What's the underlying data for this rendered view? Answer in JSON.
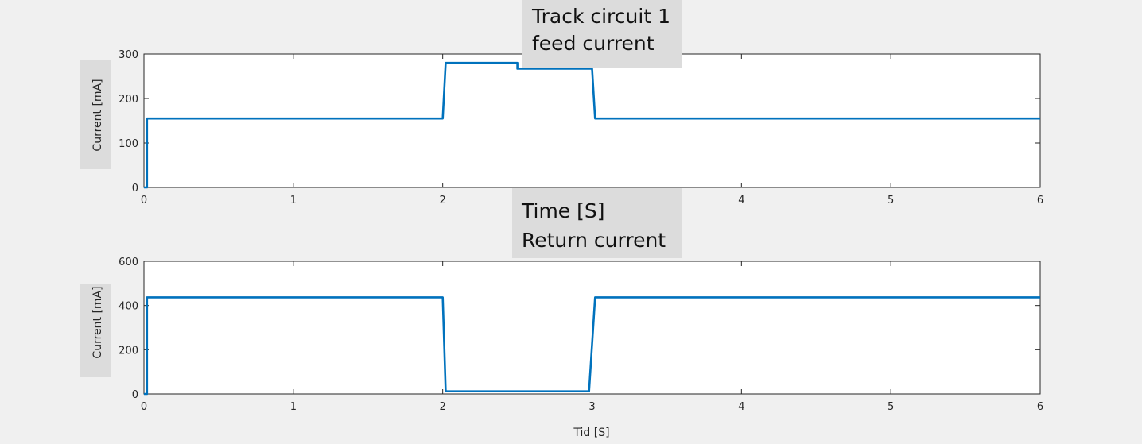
{
  "chart_data": [
    {
      "type": "line",
      "title_lines": [
        "Track circuit 1",
        "feed current"
      ],
      "xlabel": "",
      "ylabel": "Current [mA]",
      "xlim": [
        0,
        6
      ],
      "ylim": [
        0,
        300
      ],
      "xticks": [
        "0",
        "1",
        "2",
        "3",
        "4",
        "5",
        "6"
      ],
      "yticks": [
        "0",
        "100",
        "200",
        "300"
      ],
      "color": "#0072BD",
      "series": [
        {
          "x": [
            0,
            0.02,
            0.02,
            2.0,
            2.02,
            2.5,
            2.5,
            3.0,
            3.02,
            6.0
          ],
          "y": [
            0,
            0,
            155,
            155,
            280,
            280,
            267,
            267,
            155,
            155
          ]
        }
      ]
    },
    {
      "type": "line",
      "title_lines": [
        "Time [S]",
        "Return current"
      ],
      "xlabel": "Tid [S]",
      "ylabel": "Current [mA]",
      "xlim": [
        0,
        6
      ],
      "ylim": [
        0,
        600
      ],
      "xticks": [
        "0",
        "1",
        "2",
        "3",
        "4",
        "5",
        "6"
      ],
      "yticks": [
        "0",
        "200",
        "400",
        "600"
      ],
      "color": "#0072BD",
      "series": [
        {
          "x": [
            0,
            0.02,
            0.02,
            2.0,
            2.02,
            2.98,
            3.02,
            6.0
          ],
          "y": [
            0,
            0,
            437,
            437,
            12,
            12,
            437,
            437
          ]
        }
      ]
    }
  ]
}
